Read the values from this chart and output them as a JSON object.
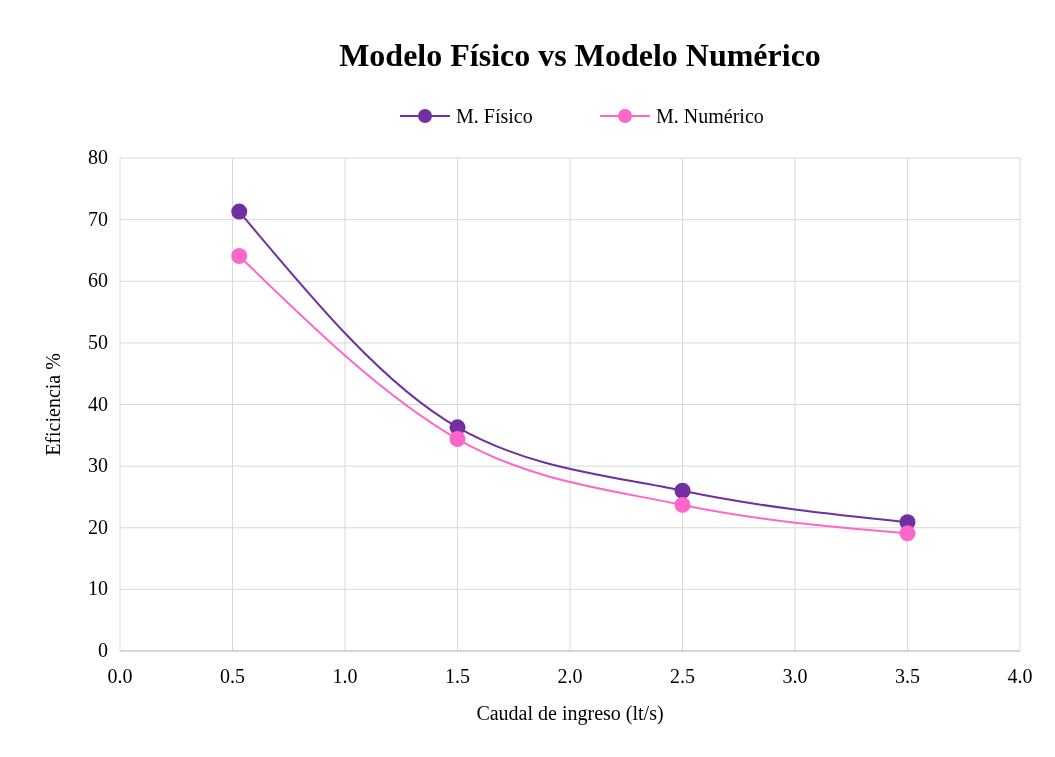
{
  "chart_data": {
    "type": "line",
    "title": "Modelo Físico vs Modelo Numérico",
    "xlabel": "Caudal de ingreso (lt/s)",
    "ylabel": "Eficiencia %",
    "x": [
      0.53,
      1.5,
      2.5,
      3.5
    ],
    "series": [
      {
        "name": "M. Físico",
        "color": "#7030a0",
        "values": [
          71.3,
          36.3,
          26.0,
          20.9
        ]
      },
      {
        "name": "M. Numérico",
        "color": "#ff66cc",
        "values": [
          64.1,
          34.4,
          23.7,
          19.1
        ]
      }
    ],
    "xlim": [
      0,
      4
    ],
    "xticks": [
      {
        "value": 0,
        "label": "0.0"
      },
      {
        "value": 0.5,
        "label": "0.5"
      },
      {
        "value": 1,
        "label": "1.0"
      },
      {
        "value": 1.5,
        "label": "1.5"
      },
      {
        "value": 2,
        "label": "2.0"
      },
      {
        "value": 2.5,
        "label": "2.5"
      },
      {
        "value": 3,
        "label": "3.0"
      },
      {
        "value": 3.5,
        "label": "3.5"
      },
      {
        "value": 4,
        "label": "4.0"
      }
    ],
    "ylim": [
      0,
      80
    ],
    "yticks": [
      0,
      10,
      20,
      30,
      40,
      50,
      60,
      70,
      80
    ],
    "grid": true,
    "legend": "top",
    "marker": "circle",
    "line_style": "solid"
  }
}
